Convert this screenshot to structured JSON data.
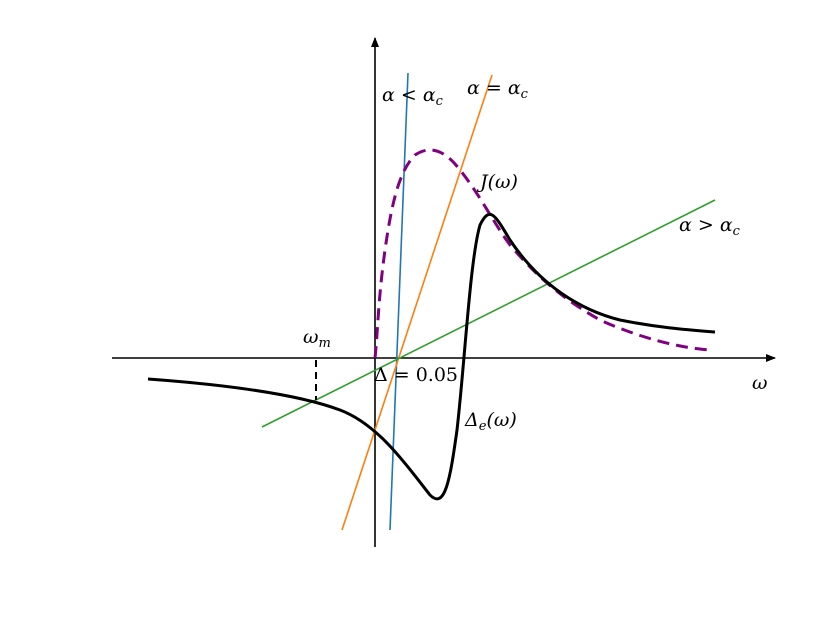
{
  "labels": {
    "alpha_less": {
      "pre": "α < α",
      "sub": "c"
    },
    "alpha_equal": {
      "pre": "α = α",
      "sub": "c"
    },
    "j_omega": {
      "pre": "J(ω)"
    },
    "alpha_greater": {
      "pre": "α > α",
      "sub": "c"
    },
    "omega_m": {
      "pre": "ω",
      "sub": "m"
    },
    "delta": {
      "pre": "Δ = 0.05"
    },
    "delta_e": {
      "pre": "Δ",
      "sub": "e",
      "post": "(ω)"
    },
    "omega_axis": {
      "pre": "ω"
    }
  }
}
